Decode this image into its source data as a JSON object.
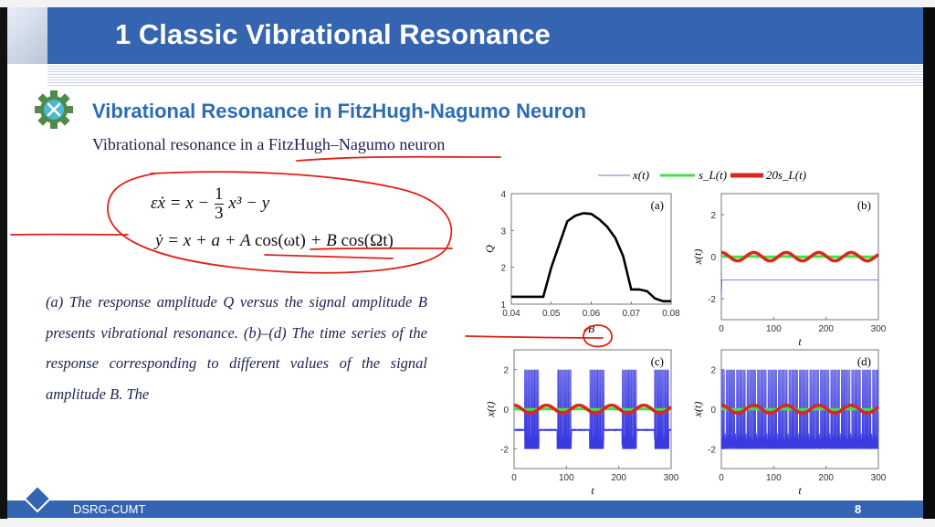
{
  "header": {
    "title": "1 Classic Vibrational Resonance"
  },
  "section": {
    "title": "Vibrational Resonance in FitzHugh-Nagumo Neuron",
    "icon": "gear-tools-icon",
    "title_color": "#2d6cb3"
  },
  "subheading": "Vibrational resonance in a FitzHugh–Nagumo neuron",
  "equations": {
    "eq1": {
      "lhs": "εẋ = x −",
      "frac_num": "1",
      "frac_den": "3",
      "rhs": "x³ − y"
    },
    "eq2": {
      "lhs": "ẏ = x + a + A",
      "cos1": "cos(ωt)",
      "mid": "+ B",
      "cos2": "cos(Ωt)"
    }
  },
  "caption": "(a) The response amplitude Q versus the signal amplitude B presents vibrational resonance. (b)–(d) The time series of the response corresponding to different values of the signal amplitude B. The",
  "legend": [
    {
      "label": "x(t)",
      "color": "#8f8fe0"
    },
    {
      "label": "s_L(t)",
      "color": "#44e044"
    },
    {
      "label": "20s_L(t)",
      "color": "#d8281e"
    }
  ],
  "footer": {
    "org": "DSRG-CUMT",
    "page": "8"
  },
  "colors": {
    "header_band": "#3565b0",
    "annotation": "#e0201a"
  },
  "chart_data": [
    {
      "type": "line",
      "panel": "(a)",
      "xlabel": "B",
      "ylabel": "Q",
      "xlim": [
        0.04,
        0.08
      ],
      "ylim": [
        1,
        4
      ],
      "xticks": [
        "0.04",
        "0.05",
        "0.06",
        "0.07",
        "0.08"
      ],
      "yticks": [
        "1",
        "2",
        "3",
        "4"
      ],
      "x": [
        0.04,
        0.048,
        0.05,
        0.054,
        0.056,
        0.058,
        0.06,
        0.062,
        0.064,
        0.066,
        0.068,
        0.07,
        0.072,
        0.074,
        0.076,
        0.078,
        0.08
      ],
      "y": [
        1.2,
        1.2,
        2.0,
        3.25,
        3.4,
        3.47,
        3.45,
        3.3,
        3.1,
        2.8,
        2.3,
        1.4,
        1.4,
        1.35,
        1.15,
        1.08,
        1.08
      ]
    },
    {
      "type": "line",
      "panel": "(b)",
      "xlabel": "t",
      "ylabel": "x(t)",
      "xlim": [
        0,
        300
      ],
      "ylim": [
        -3,
        3
      ],
      "xticks": [
        "0",
        "100",
        "200",
        "300"
      ],
      "yticks": [
        "-2",
        "0",
        "2"
      ],
      "mode": "rest"
    },
    {
      "type": "line",
      "panel": "(c)",
      "xlabel": "t",
      "ylabel": "x(t)",
      "xlim": [
        0,
        300
      ],
      "ylim": [
        -3,
        3
      ],
      "xticks": [
        "0",
        "100",
        "200",
        "300"
      ],
      "yticks": [
        "-2",
        "0",
        "2"
      ],
      "mode": "bursting"
    },
    {
      "type": "line",
      "panel": "(d)",
      "xlabel": "t",
      "ylabel": "x(t)",
      "xlim": [
        0,
        300
      ],
      "ylim": [
        -3,
        3
      ],
      "xticks": [
        "0",
        "100",
        "200",
        "300"
      ],
      "yticks": [
        "-2",
        "0",
        "2"
      ],
      "mode": "spiking"
    }
  ]
}
